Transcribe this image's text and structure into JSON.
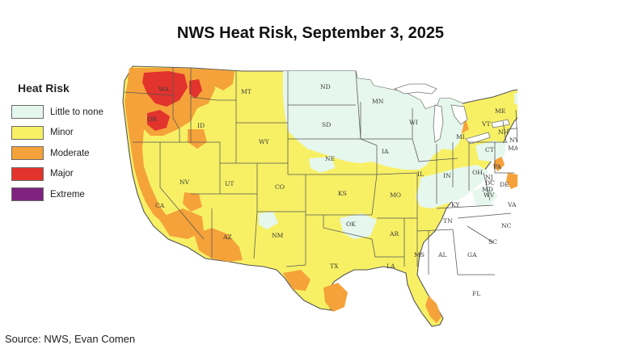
{
  "title": "NWS Heat Risk, September 3, 2025",
  "legend": {
    "title": "Heat Risk",
    "items": [
      {
        "label": "Little to none",
        "color": "#e6f7ee"
      },
      {
        "label": "Minor",
        "color": "#f7f065"
      },
      {
        "label": "Moderate",
        "color": "#f5a23a"
      },
      {
        "label": "Major",
        "color": "#e2332d"
      },
      {
        "label": "Extreme",
        "color": "#7f2280"
      }
    ]
  },
  "state_labels": [
    "WA",
    "OR",
    "CA",
    "ID",
    "NV",
    "MT",
    "WY",
    "UT",
    "AZ",
    "CO",
    "NM",
    "ND",
    "SD",
    "NE",
    "KS",
    "OK",
    "TX",
    "MN",
    "IA",
    "MO",
    "AR",
    "LA",
    "WI",
    "IL",
    "MI",
    "IN",
    "OH",
    "KY",
    "TN",
    "MS",
    "AL",
    "GA",
    "FL",
    "SC",
    "NC",
    "VA",
    "WV",
    "PA",
    "NY",
    "ME",
    "VT",
    "NH",
    "MA",
    "CT",
    "NJ",
    "MD",
    "DE",
    "DC"
  ],
  "source": "Source: NWS, Evan Comen"
}
